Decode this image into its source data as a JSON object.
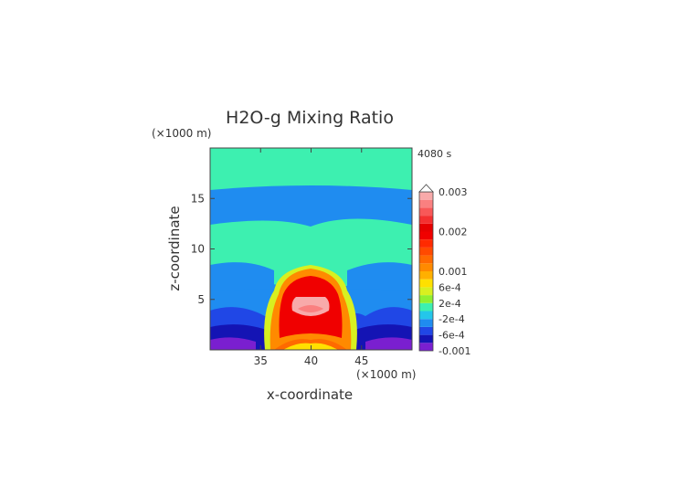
{
  "chart_data": {
    "type": "heatmap",
    "title": "H2O-g Mixing Ratio",
    "time_label": "4080 s",
    "xlabel": "x-coordinate",
    "ylabel": "z-coordinate",
    "x_unit": "(×1000 m)",
    "y_unit": "(×1000 m)",
    "xlim": [
      30,
      50
    ],
    "ylim": [
      0,
      20
    ],
    "x_ticks": [
      35,
      40,
      45
    ],
    "y_ticks": [
      5,
      10,
      15
    ],
    "colorbar": {
      "levels": [
        -0.001,
        -0.0008,
        -0.0006,
        -0.0004,
        -0.0002,
        0,
        0.0002,
        0.0004,
        0.0006,
        0.0008,
        0.001,
        0.0012,
        0.0014,
        0.0016,
        0.0018,
        0.002,
        0.0022,
        0.0024,
        0.0026,
        0.0028,
        0.003
      ],
      "colors": [
        "#7a1fd0",
        "#1414b4",
        "#2047e6",
        "#1f8cf0",
        "#24c6ea",
        "#3df0b0",
        "#90f030",
        "#d8f020",
        "#ffe000",
        "#ffb000",
        "#ff8a00",
        "#ff6a00",
        "#ff4a00",
        "#ff2a00",
        "#f00000",
        "#e60000",
        "#f43030",
        "#f85858",
        "#fa8080",
        "#f8aaaa"
      ],
      "tick_labels": [
        "0.003",
        "0.002",
        "0.001",
        "6e-4",
        "2e-4",
        "-2e-4",
        "-6e-4",
        "-0.001"
      ],
      "tick_values": [
        0.003,
        0.002,
        0.001,
        0.0006,
        0.0002,
        -0.0002,
        -0.0006,
        -0.001
      ],
      "extend_max": true
    },
    "field_regions": [
      {
        "desc": "background upper and lower layers",
        "value": 0.0001
      },
      {
        "desc": "upper band z 6-16",
        "value": -0.0003
      },
      {
        "desc": "cloud core x 36-43 z 1.5-6",
        "value": 0.0028
      },
      {
        "desc": "near-surface minima z 0-1",
        "value": -0.001
      }
    ]
  }
}
